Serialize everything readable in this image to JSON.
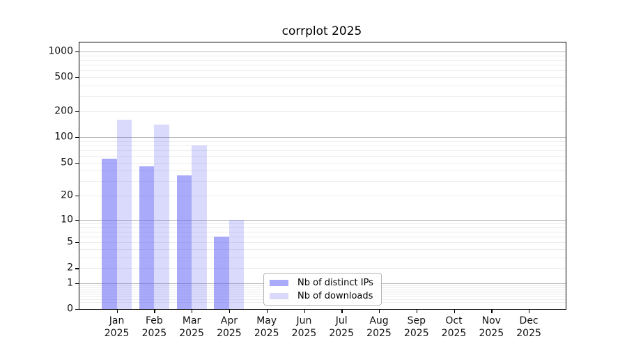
{
  "chart_data": {
    "type": "bar",
    "title": "corrplot 2025",
    "categories": [
      "Jan 2025",
      "Feb 2025",
      "Mar 2025",
      "Apr 2025",
      "May 2025",
      "Jun 2025",
      "Jul 2025",
      "Aug 2025",
      "Sep 2025",
      "Oct 2025",
      "Nov 2025",
      "Dec 2025"
    ],
    "series": [
      {
        "name": "Nb of distinct IPs",
        "values": [
          55,
          45,
          35,
          6,
          0,
          0,
          0,
          0,
          0,
          0,
          0,
          0
        ],
        "color": "#aaaafa",
        "fill": "rgba(85,85,245,0.50)"
      },
      {
        "name": "Nb of downloads",
        "values": [
          160,
          140,
          80,
          10,
          0,
          0,
          0,
          0,
          0,
          0,
          0,
          0
        ],
        "color": "#d9d9f9",
        "fill": "rgba(85,85,245,0.22)"
      }
    ],
    "y_scale": "log1p",
    "y_ticks": [
      0,
      1,
      2,
      5,
      10,
      20,
      50,
      100,
      200,
      500,
      1000
    ],
    "y_grid_major": [
      1,
      10,
      100,
      1000
    ],
    "ylim": [
      0,
      1276
    ],
    "xlabel": "",
    "ylabel": "",
    "grid": true,
    "legend_position": "lower center",
    "colors": {
      "grid_major": "#bababa",
      "grid_minor": "#ececec",
      "axis": "#000000",
      "text": "#111111"
    }
  }
}
